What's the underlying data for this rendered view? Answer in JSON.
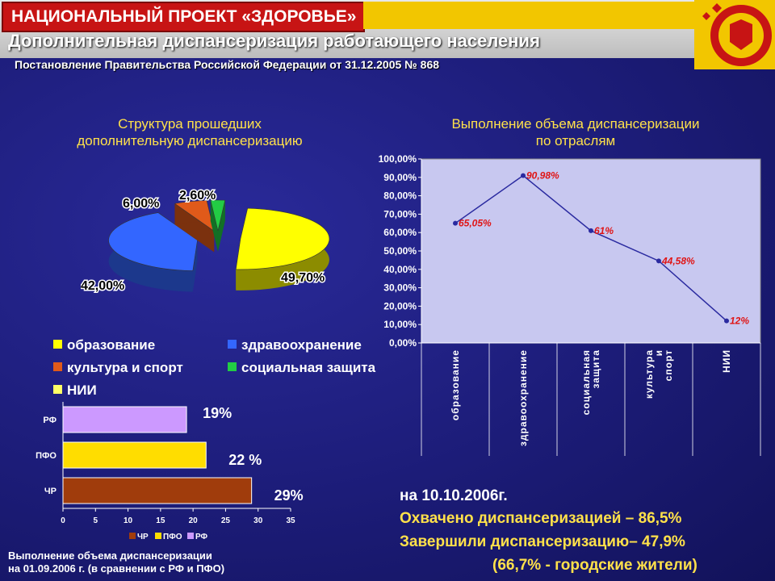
{
  "header": {
    "badge": "НАЦИОНАЛЬНЫЙ ПРОЕКТ «ЗДОРОВЬЕ»",
    "title": "Дополнительная диспансеризация работающего населения",
    "subtitle": "Постановление Правительства Российской Федерации от 31.12.2005 № 868"
  },
  "pie_title_l1": "Структура прошедших",
  "pie_title_l2": "дополнительную диспансеризацию",
  "line_title_l1": "Выполнение объема диспансеризации",
  "line_title_l2": "по отраслям",
  "bar_caption_l1": "Выполнение объема диспансеризации",
  "bar_caption_l2": "на 01.09.2006 г. (в сравнении с РФ и ПФО)",
  "summary": {
    "date": "на 10.10.2006г.",
    "covered": "Охвачено диспансеризацией – 86,5%",
    "completed": "Завершили диспансеризацию– 47,9%",
    "urban": "(66,7% - городские жители)"
  },
  "colors": {
    "pie_edu": "#ffff00",
    "pie_health": "#3366ff",
    "pie_culture": "#e05a1a",
    "pie_social": "#22cc44",
    "pie_nii": "#ffff66",
    "bar_rf": "#cc99ff",
    "bar_pfo": "#ffdd00",
    "bar_chr": "#a03c0c",
    "line": "#2a2aa0",
    "line_label": "#e01414",
    "plot_bg": "#c8c8f0"
  },
  "chart_data": [
    {
      "type": "pie",
      "categories": [
        "образование",
        "здравоохранение",
        "культура и спорт",
        "социальная защита",
        "НИИ"
      ],
      "values": [
        49.7,
        42.0,
        6.0,
        2.6,
        0
      ],
      "data_labels": [
        "49,70%",
        "42,00%",
        "6,00%",
        "2,60%",
        ""
      ]
    },
    {
      "type": "line",
      "categories": [
        "образование",
        "здравоохранение",
        "социальная защита",
        "культура и спорт",
        "НИИ"
      ],
      "values": [
        65.05,
        90.98,
        61,
        44.58,
        12
      ],
      "data_labels": [
        "65,05%",
        "90,98%",
        "61%",
        "44,58%",
        "12%"
      ],
      "ylim": [
        0,
        100
      ],
      "yticks": [
        "0,00%",
        "10,00%",
        "20,00%",
        "30,00%",
        "40,00%",
        "50,00%",
        "60,00%",
        "70,00%",
        "80,00%",
        "90,00%",
        "100,00%"
      ]
    },
    {
      "type": "bar",
      "orientation": "horizontal",
      "categories": [
        "РФ",
        "ПФО",
        "ЧР"
      ],
      "values": [
        19,
        22,
        29
      ],
      "data_labels": [
        "19%",
        "22 %",
        "29%"
      ],
      "xlim": [
        0,
        35
      ],
      "xticks": [
        "0",
        "5",
        "10",
        "15",
        "20",
        "25",
        "30",
        "35"
      ],
      "legend": [
        "ЧР",
        "ПФО",
        "РФ"
      ]
    }
  ]
}
